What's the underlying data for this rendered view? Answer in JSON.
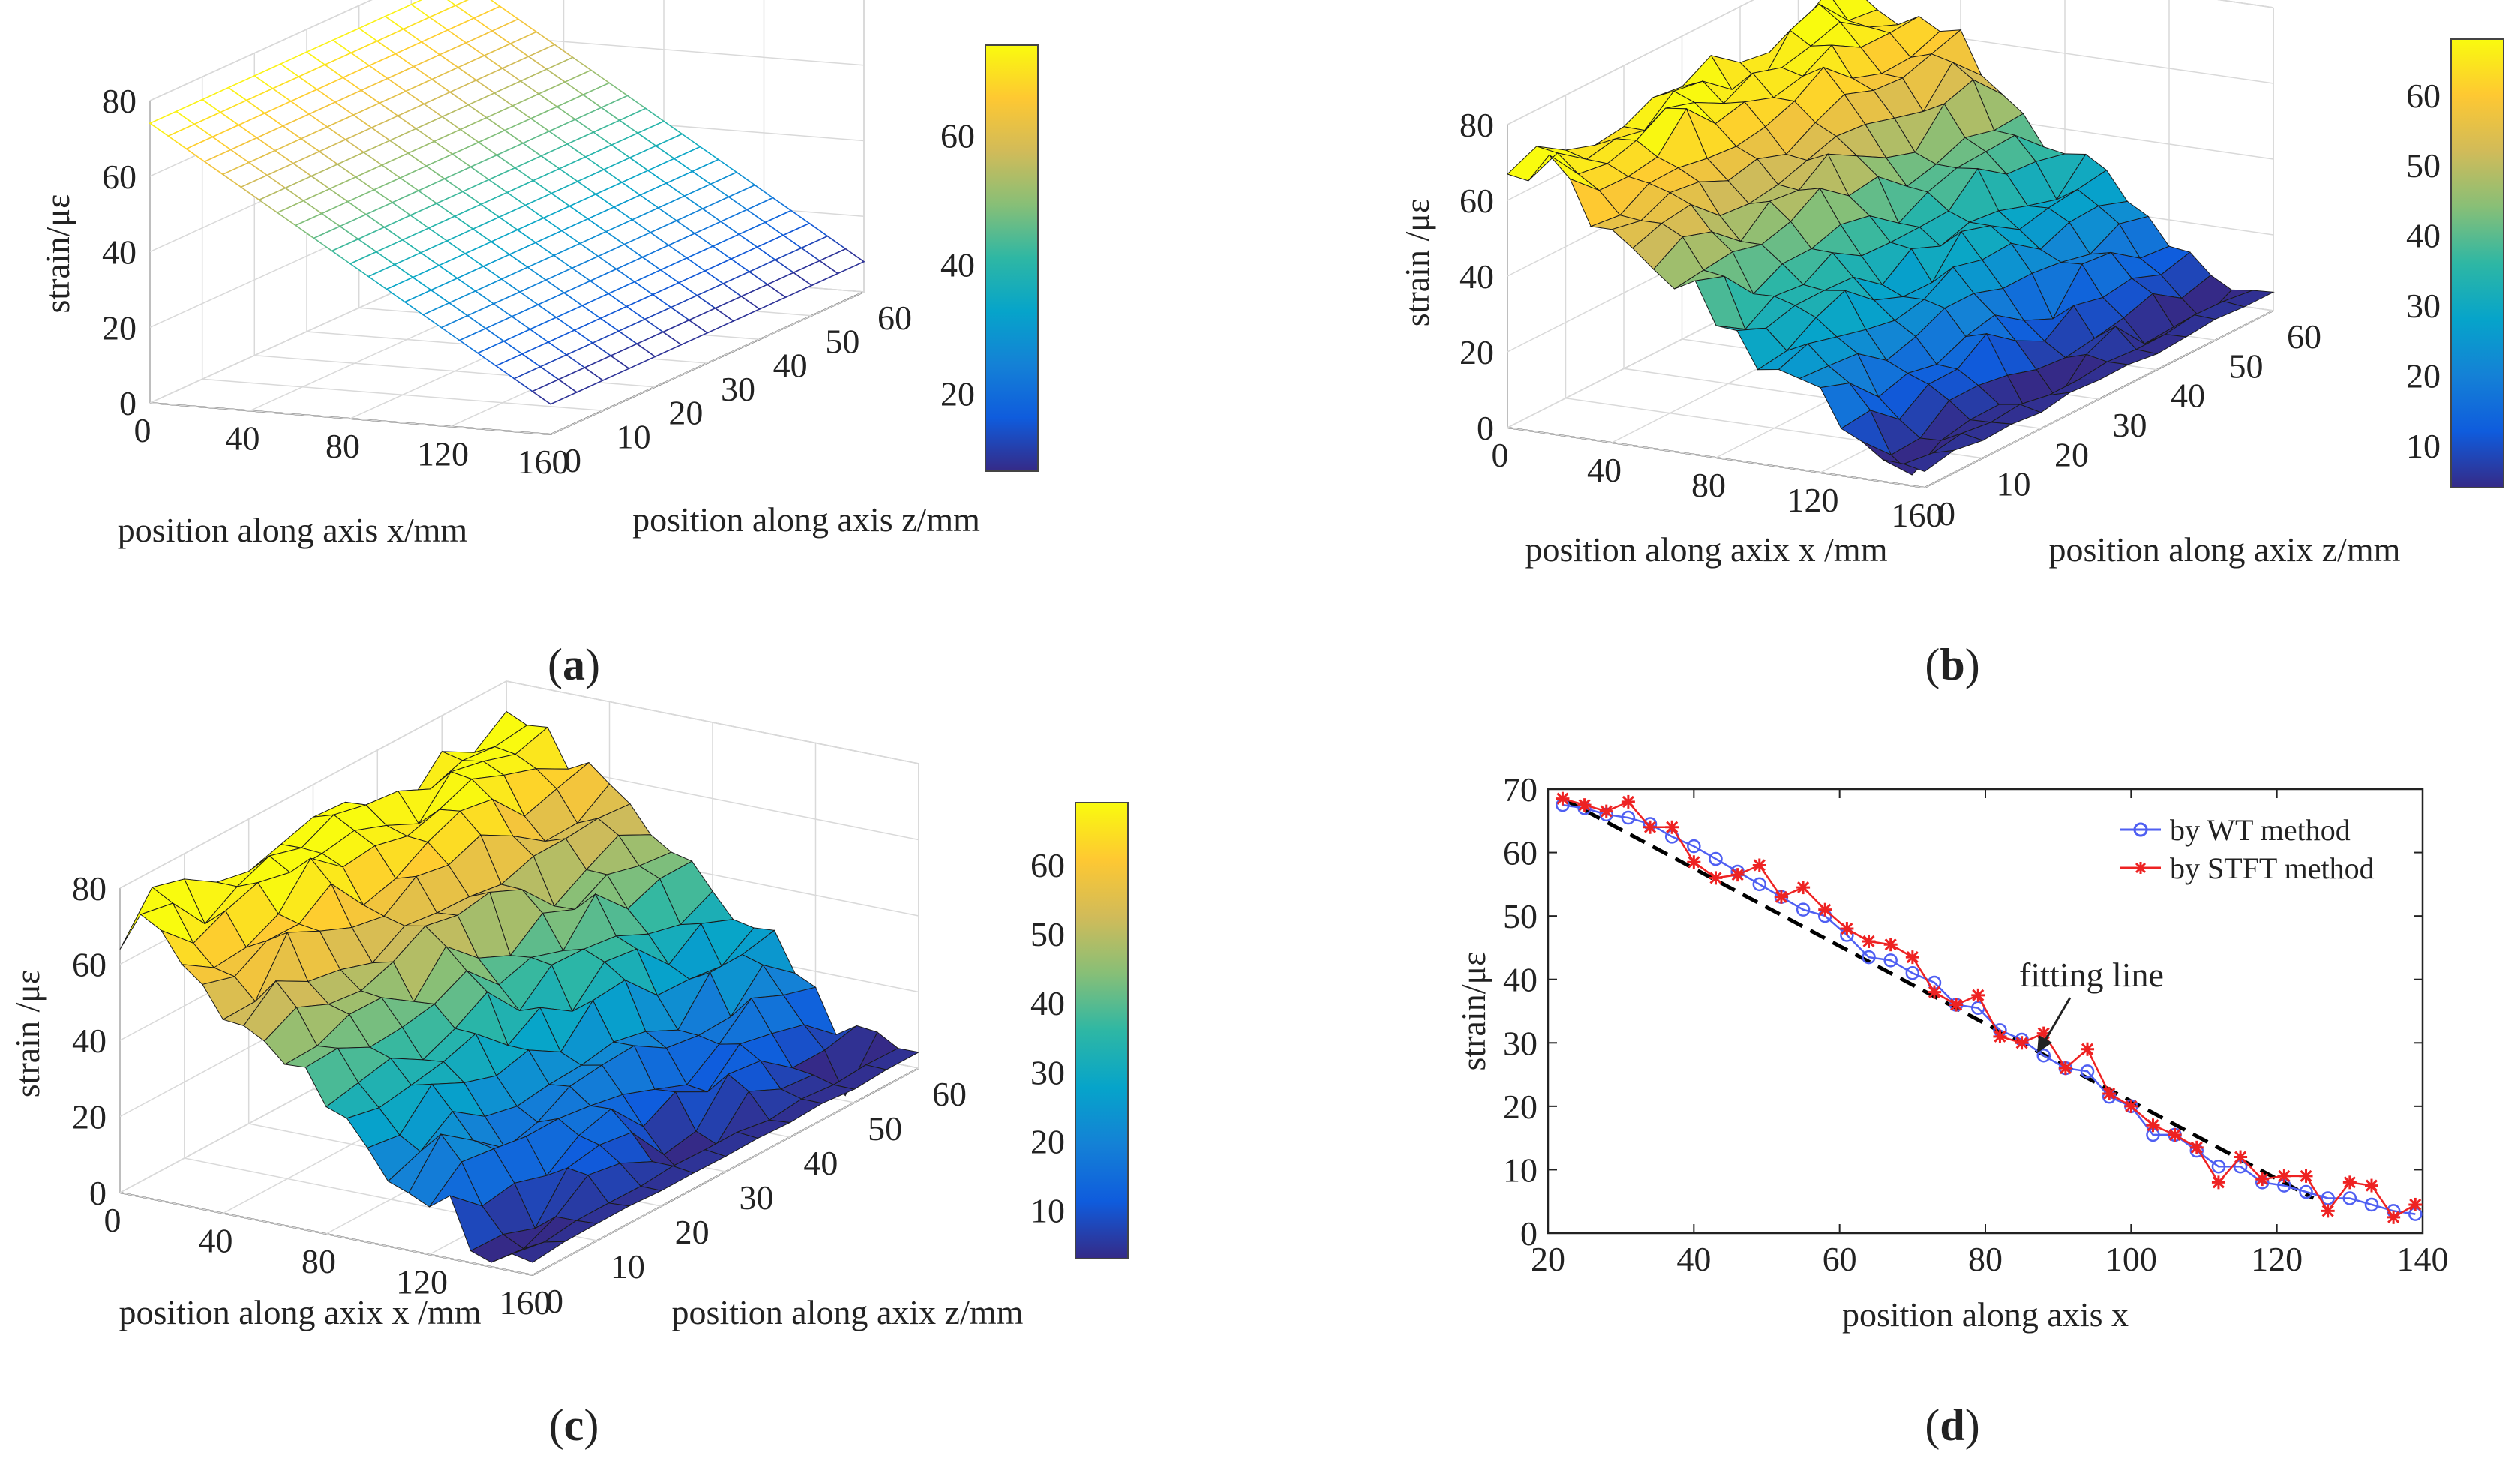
{
  "chart_data": [
    {
      "id": "a",
      "type": "surface3d",
      "caption_letter": "a",
      "zlabel": "strain/με",
      "xlabel": "position along axis x/mm",
      "ylabel": "position along axis z/mm",
      "zticks": [
        "0",
        "20",
        "40",
        "60",
        "80"
      ],
      "xticks": [
        "0",
        "40",
        "80",
        "120",
        "160"
      ],
      "yticks": [
        "0",
        "10",
        "20",
        "30",
        "40",
        "50",
        "60"
      ],
      "colorbar_ticks": [
        "20",
        "40",
        "60"
      ],
      "colorbar_range": [
        8,
        74
      ],
      "surface": "smooth linear plane from ~74 at x=0 to ~8 at x=160, constant along z",
      "style": "mesh"
    },
    {
      "id": "b",
      "type": "surface3d",
      "caption_letter": "b",
      "zlabel": "strain /με",
      "xlabel": "position along axix x /mm",
      "ylabel": "position along axix z/mm",
      "zticks": [
        "0",
        "20",
        "40",
        "60",
        "80"
      ],
      "xticks": [
        "0",
        "40",
        "80",
        "120",
        "160"
      ],
      "yticks": [
        "0",
        "10",
        "20",
        "30",
        "40",
        "50",
        "60"
      ],
      "colorbar_ticks": [
        "10",
        "20",
        "30",
        "40",
        "50",
        "60"
      ],
      "colorbar_range": [
        4,
        68
      ],
      "surface": "noisy descending surface from ~68 to ~3",
      "style": "faceted"
    },
    {
      "id": "c",
      "type": "surface3d",
      "caption_letter": "c",
      "zlabel": "strain /με",
      "xlabel": "position along axix x /mm",
      "ylabel": "position along axix z/mm",
      "zticks": [
        "0",
        "20",
        "40",
        "60",
        "80"
      ],
      "xticks": [
        "0",
        "40",
        "80",
        "120",
        "160"
      ],
      "yticks": [
        "0",
        "10",
        "20",
        "30",
        "40",
        "50",
        "60"
      ],
      "colorbar_ticks": [
        "10",
        "20",
        "30",
        "40",
        "50",
        "60"
      ],
      "colorbar_range": [
        3,
        69
      ],
      "surface": "noisier descending surface from ~69 to ~2",
      "style": "faceted"
    },
    {
      "id": "d",
      "type": "line",
      "caption_letter": "d",
      "xlabel": "position along axis x",
      "ylabel": "strain/με",
      "xlim": [
        20,
        140
      ],
      "ylim": [
        0,
        70
      ],
      "xticks": [
        "20",
        "40",
        "60",
        "80",
        "100",
        "120",
        "140"
      ],
      "yticks": [
        "0",
        "10",
        "20",
        "30",
        "40",
        "50",
        "60",
        "70"
      ],
      "annotation": "fitting  line",
      "series": [
        {
          "name": "by WT method",
          "color": "#4f5ff2",
          "marker": "circle",
          "x": [
            22,
            25,
            28,
            31,
            34,
            37,
            40,
            43,
            46,
            49,
            52,
            55,
            58,
            61,
            64,
            67,
            70,
            73,
            76,
            79,
            82,
            85,
            88,
            91,
            94,
            97,
            100,
            103,
            106,
            109,
            112,
            115,
            118,
            121,
            124,
            127,
            130,
            133,
            136,
            139
          ],
          "y": [
            67.5,
            67,
            66,
            65.5,
            64.5,
            62.5,
            61,
            59,
            57,
            55,
            53,
            51,
            50,
            47,
            43.5,
            43,
            41,
            39.5,
            36,
            35.5,
            32,
            30.5,
            28,
            26,
            25.5,
            21.5,
            20,
            15.5,
            15.5,
            13,
            10.5,
            10.5,
            8,
            7.5,
            6.5,
            5.5,
            5.5,
            4.5,
            3.5,
            3
          ]
        },
        {
          "name": "by STFT method",
          "color": "#ee2222",
          "marker": "asterisk",
          "x": [
            22,
            25,
            28,
            31,
            34,
            37,
            40,
            43,
            46,
            49,
            52,
            55,
            58,
            61,
            64,
            67,
            70,
            73,
            76,
            79,
            82,
            85,
            88,
            91,
            94,
            97,
            100,
            103,
            106,
            109,
            112,
            115,
            118,
            121,
            124,
            127,
            130,
            133,
            136,
            139
          ],
          "y": [
            68.5,
            67.5,
            66.5,
            68,
            64,
            64,
            58.5,
            56,
            56.5,
            58,
            53,
            54.5,
            51,
            48,
            46,
            45.5,
            43.5,
            38,
            36,
            37.5,
            31,
            30,
            31.5,
            26,
            29,
            22,
            20,
            17,
            15.5,
            13.5,
            8,
            12,
            8.5,
            9,
            9,
            3.5,
            8,
            7.5,
            2.5,
            4.5
          ]
        }
      ],
      "fit_line": {
        "name": "fitting line",
        "x": [
          22,
          125
        ],
        "y": [
          68.5,
          5.5
        ],
        "color": "#000000",
        "style": "dashed"
      }
    }
  ]
}
